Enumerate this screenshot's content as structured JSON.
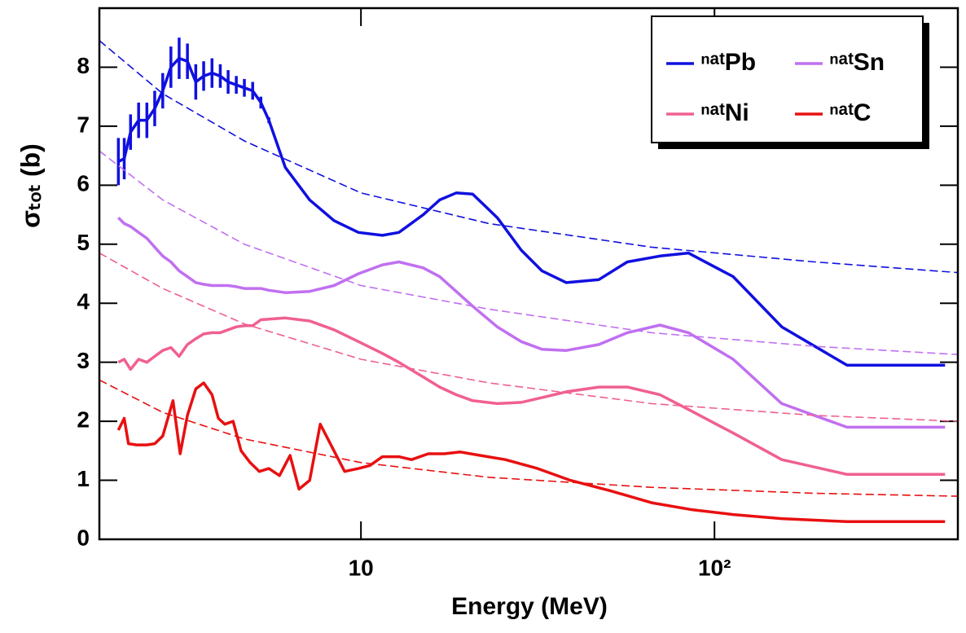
{
  "chart_data": {
    "type": "line",
    "x_label": "Energy (MeV)",
    "y_label": "σₜₒₜ (b)",
    "log_x": true,
    "xlim": [
      1.82,
      488
    ],
    "xticks": [
      10,
      {
        "value": 100,
        "label": "10²"
      }
    ],
    "ylim": [
      0,
      9
    ],
    "yticks": [
      0,
      1,
      2,
      3,
      4,
      5,
      6,
      7,
      8
    ],
    "legend": "upper right",
    "series": [
      {
        "name": "ⁿᵃᵗPb",
        "color": "#1010e0",
        "x": [
          2.06,
          2.14,
          2.23,
          2.35,
          2.48,
          2.61,
          2.75,
          2.9,
          3.06,
          3.23,
          3.41,
          3.59,
          3.79,
          4.0,
          4.21,
          4.44,
          4.68,
          4.94,
          5.21,
          5.49,
          6.11,
          7.16,
          8.39,
          9.84,
          11.5,
          12.8,
          15.0,
          16.7,
          18.6,
          20.7,
          24.3,
          28.4,
          32.5,
          38.1,
          47.1,
          56.7,
          70.1,
          84.4,
          113,
          155,
          237,
          449
        ],
        "values": [
          6.4,
          6.45,
          6.9,
          7.1,
          7.1,
          7.3,
          7.6,
          8.0,
          8.15,
          8.1,
          7.75,
          7.85,
          7.9,
          7.85,
          7.75,
          7.7,
          7.65,
          7.6,
          7.4,
          7.1,
          6.3,
          5.75,
          5.4,
          5.2,
          5.15,
          5.2,
          5.5,
          5.75,
          5.87,
          5.85,
          5.45,
          4.9,
          4.55,
          4.35,
          4.4,
          4.7,
          4.8,
          4.85,
          4.45,
          3.6,
          2.95,
          2.95
        ],
        "errors": [
          0.4,
          0.35,
          0.3,
          0.3,
          0.3,
          0.3,
          0.3,
          0.35,
          0.35,
          0.3,
          0.3,
          0.25,
          0.25,
          0.2,
          0.2,
          0.15,
          0.15,
          0.15,
          0.1,
          0.05,
          null,
          null,
          null,
          null,
          null,
          null,
          null,
          null,
          null,
          null,
          null,
          null,
          null,
          null,
          null,
          null,
          null,
          null,
          null,
          null,
          null,
          null
        ]
      },
      {
        "name": "ⁿᵃᵗSn",
        "color": "#c070f0",
        "x": [
          2.06,
          2.14,
          2.23,
          2.35,
          2.48,
          2.61,
          2.75,
          2.9,
          3.06,
          3.23,
          3.41,
          3.59,
          3.79,
          4.0,
          4.21,
          4.44,
          4.68,
          4.94,
          5.21,
          5.49,
          6.11,
          7.16,
          8.39,
          9.84,
          11.5,
          12.8,
          15.0,
          16.7,
          18.6,
          20.7,
          24.3,
          28.4,
          32.5,
          38.1,
          47.1,
          56.7,
          70.1,
          84.4,
          113,
          155,
          237,
          449
        ],
        "values": [
          5.45,
          5.35,
          5.3,
          5.2,
          5.1,
          4.95,
          4.8,
          4.7,
          4.55,
          4.45,
          4.35,
          4.32,
          4.3,
          4.3,
          4.3,
          4.28,
          4.25,
          4.25,
          4.25,
          4.22,
          4.18,
          4.2,
          4.3,
          4.5,
          4.65,
          4.7,
          4.6,
          4.45,
          4.2,
          3.95,
          3.6,
          3.35,
          3.22,
          3.2,
          3.3,
          3.5,
          3.63,
          3.5,
          3.05,
          2.3,
          1.9,
          1.9
        ]
      },
      {
        "name": "ⁿᵃᵗNi",
        "color": "#f06090",
        "x": [
          2.06,
          2.14,
          2.23,
          2.35,
          2.48,
          2.61,
          2.75,
          2.9,
          3.06,
          3.23,
          3.41,
          3.59,
          3.79,
          4.0,
          4.21,
          4.44,
          4.68,
          4.94,
          5.21,
          5.49,
          6.11,
          7.16,
          8.39,
          9.84,
          11.5,
          12.8,
          15.0,
          16.7,
          18.6,
          20.7,
          24.3,
          28.4,
          32.5,
          38.1,
          47.1,
          56.7,
          70.1,
          84.4,
          113,
          155,
          237,
          449
        ],
        "values": [
          3.0,
          3.05,
          2.88,
          3.05,
          3.0,
          3.1,
          3.2,
          3.25,
          3.1,
          3.3,
          3.4,
          3.48,
          3.5,
          3.5,
          3.55,
          3.6,
          3.62,
          3.62,
          3.72,
          3.73,
          3.75,
          3.7,
          3.55,
          3.35,
          3.15,
          3.0,
          2.75,
          2.58,
          2.45,
          2.35,
          2.3,
          2.32,
          2.4,
          2.5,
          2.58,
          2.58,
          2.45,
          2.2,
          1.8,
          1.35,
          1.1,
          1.1
        ]
      },
      {
        "name": "ⁿᵃᵗC",
        "color": "#e81010",
        "x": [
          2.06,
          2.14,
          2.2,
          2.32,
          2.48,
          2.61,
          2.75,
          2.94,
          3.08,
          3.23,
          3.41,
          3.59,
          3.79,
          3.95,
          4.12,
          4.35,
          4.58,
          4.86,
          5.16,
          5.49,
          5.88,
          6.3,
          6.68,
          7.16,
          7.67,
          8.99,
          9.84,
          10.6,
          11.5,
          12.8,
          13.9,
          15.5,
          17.2,
          19.1,
          21.8,
          25.6,
          31.6,
          39.1,
          50.9,
          66.4,
          86.8,
          113,
          155,
          237,
          449
        ],
        "values": [
          1.85,
          2.05,
          1.62,
          1.6,
          1.6,
          1.62,
          1.75,
          2.35,
          1.45,
          2.1,
          2.55,
          2.65,
          2.45,
          2.05,
          1.95,
          2.0,
          1.5,
          1.3,
          1.15,
          1.2,
          1.08,
          1.42,
          0.85,
          1.0,
          1.95,
          1.15,
          1.2,
          1.25,
          1.4,
          1.4,
          1.35,
          1.45,
          1.45,
          1.48,
          1.42,
          1.35,
          1.2,
          1.0,
          0.82,
          0.62,
          0.5,
          0.42,
          0.35,
          0.3,
          0.3
        ]
      },
      {
        "color": "#1010e0",
        "dashed": true,
        "x": [
          1.82,
          2.75,
          4.68,
          10,
          23.0,
          66.4,
          192,
          488
        ],
        "values": [
          8.45,
          7.55,
          6.75,
          5.87,
          5.35,
          4.95,
          4.7,
          4.52
        ]
      },
      {
        "color": "#c070f0",
        "dashed": true,
        "x": [
          1.82,
          2.75,
          4.68,
          10,
          23.0,
          66.4,
          192,
          488
        ],
        "values": [
          6.58,
          5.75,
          5.0,
          4.3,
          3.9,
          3.5,
          3.27,
          3.13
        ]
      },
      {
        "color": "#f06090",
        "dashed": true,
        "x": [
          1.82,
          2.75,
          4.68,
          10,
          23.0,
          66.4,
          192,
          488
        ],
        "values": [
          4.85,
          4.25,
          3.65,
          3.05,
          2.65,
          2.3,
          2.1,
          2.0
        ]
      },
      {
        "color": "#e81010",
        "dashed": true,
        "x": [
          1.82,
          2.75,
          4.68,
          10,
          23.0,
          66.4,
          192,
          488
        ],
        "values": [
          2.7,
          2.15,
          1.7,
          1.3,
          1.05,
          0.88,
          0.78,
          0.73
        ]
      }
    ]
  }
}
